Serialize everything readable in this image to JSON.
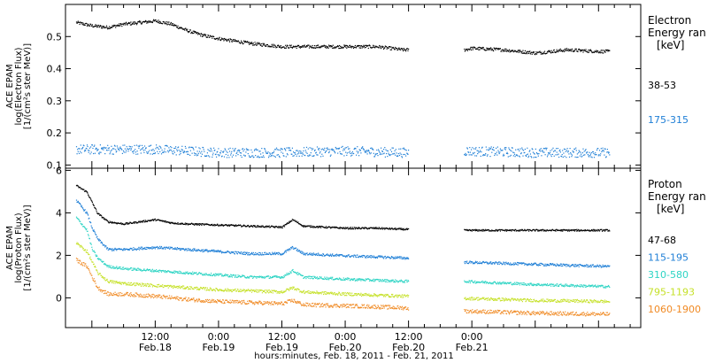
{
  "chart_data": [
    {
      "type": "scatter",
      "ylabel_lines": [
        "ACE EPAM",
        "log(Electron Flux)",
        "[1/(cm²s ster MeV)]"
      ],
      "ylim": [
        0.09,
        0.6
      ],
      "yticks": [
        0.1,
        0.2,
        0.3,
        0.4,
        0.5
      ],
      "ytick_labels": [
        "0.1",
        "0.2",
        "0.3",
        "0.4",
        "0.5"
      ],
      "legend_title": "Electron",
      "legend_subtitle": "Energy ran",
      "legend_unit": "[keV]",
      "data_gap_hours": [
        60,
        70.5
      ],
      "series": [
        {
          "name": "38-53",
          "color": "#000000",
          "anchors": [
            [
              -3,
              0.545
            ],
            [
              0,
              0.535
            ],
            [
              3,
              0.53
            ],
            [
              6,
              0.54
            ],
            [
              9,
              0.545
            ],
            [
              12,
              0.55
            ],
            [
              15,
              0.54
            ],
            [
              18,
              0.52
            ],
            [
              21,
              0.505
            ],
            [
              24,
              0.495
            ],
            [
              30,
              0.48
            ],
            [
              36,
              0.47
            ],
            [
              42,
              0.47
            ],
            [
              48,
              0.47
            ],
            [
              54,
              0.47
            ],
            [
              59,
              0.46
            ],
            [
              70.5,
              0.46
            ],
            [
              72,
              0.465
            ],
            [
              78,
              0.46
            ],
            [
              84,
              0.45
            ],
            [
              90,
              0.46
            ],
            [
              96,
              0.455
            ],
            [
              98,
              0.455
            ]
          ],
          "jitter": 0.005
        },
        {
          "name": "175-315",
          "color": "#1f7fd6",
          "anchors": [
            [
              -3,
              0.15
            ],
            [
              12,
              0.15
            ],
            [
              24,
              0.14
            ],
            [
              36,
              0.14
            ],
            [
              48,
              0.145
            ],
            [
              59,
              0.14
            ],
            [
              70.5,
              0.145
            ],
            [
              84,
              0.14
            ],
            [
              98,
              0.14
            ]
          ],
          "jitter": 0.015
        }
      ]
    },
    {
      "type": "scatter",
      "ylabel_lines": [
        "ACE EPAM",
        "log(Proton Flux)",
        "[1/(cm²s ster MeV)]"
      ],
      "ylim": [
        -1.4,
        6.1
      ],
      "yticks": [
        0,
        2,
        4,
        6
      ],
      "ytick_labels": [
        "0",
        "2",
        "4",
        "6"
      ],
      "legend_title": "Proton",
      "legend_subtitle": "Energy ran",
      "legend_unit": "[keV]",
      "data_gap_hours": [
        60,
        70.5
      ],
      "series": [
        {
          "name": "47-68",
          "color": "#000000",
          "anchors": [
            [
              -3,
              5.3
            ],
            [
              -1,
              5.0
            ],
            [
              0,
              4.5
            ],
            [
              1,
              4.0
            ],
            [
              3,
              3.6
            ],
            [
              6,
              3.5
            ],
            [
              9,
              3.6
            ],
            [
              12,
              3.7
            ],
            [
              15,
              3.55
            ],
            [
              18,
              3.5
            ],
            [
              24,
              3.45
            ],
            [
              30,
              3.4
            ],
            [
              36,
              3.35
            ],
            [
              38,
              3.7
            ],
            [
              40,
              3.4
            ],
            [
              48,
              3.3
            ],
            [
              54,
              3.3
            ],
            [
              59,
              3.25
            ],
            [
              70.5,
              3.2
            ],
            [
              84,
              3.2
            ],
            [
              98,
              3.2
            ]
          ],
          "jitter": 0.04
        },
        {
          "name": "115-195",
          "color": "#1f7fd6",
          "anchors": [
            [
              -3,
              4.6
            ],
            [
              -1,
              4.0
            ],
            [
              0,
              3.3
            ],
            [
              1,
              2.8
            ],
            [
              3,
              2.3
            ],
            [
              6,
              2.3
            ],
            [
              12,
              2.4
            ],
            [
              18,
              2.3
            ],
            [
              24,
              2.2
            ],
            [
              30,
              2.1
            ],
            [
              36,
              2.1
            ],
            [
              38,
              2.4
            ],
            [
              40,
              2.1
            ],
            [
              48,
              2.0
            ],
            [
              54,
              1.95
            ],
            [
              59,
              1.9
            ],
            [
              70.5,
              1.7
            ],
            [
              84,
              1.6
            ],
            [
              98,
              1.5
            ]
          ],
          "jitter": 0.06
        },
        {
          "name": "310-580",
          "color": "#2dd4c4",
          "anchors": [
            [
              -3,
              3.8
            ],
            [
              -1,
              3.2
            ],
            [
              0,
              2.3
            ],
            [
              1,
              1.9
            ],
            [
              3,
              1.5
            ],
            [
              6,
              1.4
            ],
            [
              12,
              1.3
            ],
            [
              18,
              1.2
            ],
            [
              24,
              1.1
            ],
            [
              30,
              1.0
            ],
            [
              36,
              1.0
            ],
            [
              38,
              1.3
            ],
            [
              40,
              1.0
            ],
            [
              48,
              0.9
            ],
            [
              54,
              0.85
            ],
            [
              59,
              0.8
            ],
            [
              70.5,
              0.8
            ],
            [
              84,
              0.65
            ],
            [
              98,
              0.55
            ]
          ],
          "jitter": 0.06
        },
        {
          "name": "795-1193",
          "color": "#c6e12a",
          "anchors": [
            [
              -3,
              2.6
            ],
            [
              -1,
              2.2
            ],
            [
              0,
              1.7
            ],
            [
              1,
              1.2
            ],
            [
              3,
              0.8
            ],
            [
              6,
              0.7
            ],
            [
              12,
              0.6
            ],
            [
              18,
              0.5
            ],
            [
              24,
              0.4
            ],
            [
              30,
              0.35
            ],
            [
              36,
              0.3
            ],
            [
              38,
              0.5
            ],
            [
              40,
              0.3
            ],
            [
              48,
              0.2
            ],
            [
              54,
              0.15
            ],
            [
              59,
              0.1
            ],
            [
              70.5,
              0.0
            ],
            [
              84,
              -0.1
            ],
            [
              98,
              -0.15
            ]
          ],
          "jitter": 0.07
        },
        {
          "name": "1060-1900",
          "color": "#f08a24",
          "anchors": [
            [
              -3,
              1.8
            ],
            [
              -1,
              1.5
            ],
            [
              0,
              1.0
            ],
            [
              1,
              0.5
            ],
            [
              3,
              0.2
            ],
            [
              6,
              0.2
            ],
            [
              12,
              0.1
            ],
            [
              18,
              -0.05
            ],
            [
              24,
              -0.15
            ],
            [
              30,
              -0.2
            ],
            [
              36,
              -0.25
            ],
            [
              38,
              -0.1
            ],
            [
              40,
              -0.3
            ],
            [
              48,
              -0.35
            ],
            [
              54,
              -0.4
            ],
            [
              59,
              -0.45
            ],
            [
              70.5,
              -0.6
            ],
            [
              84,
              -0.7
            ],
            [
              98,
              -0.75
            ]
          ],
          "jitter": 0.09
        }
      ]
    }
  ],
  "x_axis": {
    "xlim_hours": [
      -5,
      104
    ],
    "tick_hours": [
      0,
      12,
      24,
      36,
      48,
      60,
      72,
      84,
      96
    ],
    "tick_labels": [
      {
        "hour": 12,
        "time": "12:00",
        "date": "Feb.18"
      },
      {
        "hour": 24,
        "time": "0:00",
        "date": "Feb.19"
      },
      {
        "hour": 36,
        "time": "12:00",
        "date": "Feb.19"
      },
      {
        "hour": 48,
        "time": "0:00",
        "date": "Feb.20"
      },
      {
        "hour": 60,
        "time": "12:00",
        "date": "Feb.20"
      },
      {
        "hour": 72,
        "time": "0:00",
        "date": "Feb.21"
      }
    ],
    "xlabel": "hours:minutes, Feb. 18, 2011 - Feb. 21, 2011"
  }
}
